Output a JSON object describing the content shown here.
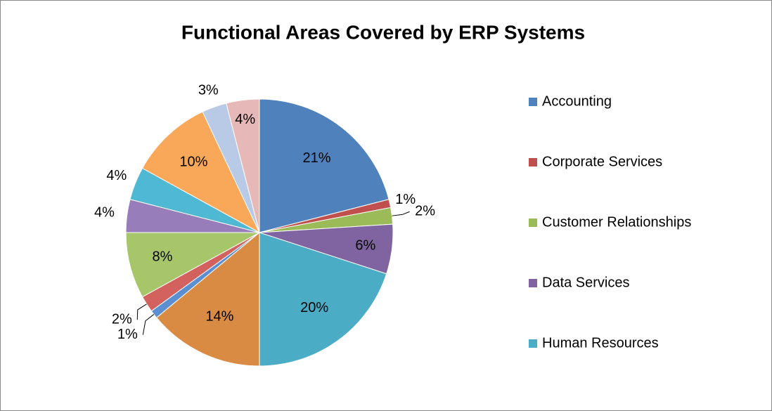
{
  "chart_data": {
    "type": "pie",
    "title": "Functional Areas Covered by ERP Systems",
    "categories": [
      "Accounting",
      "Corporate Services",
      "Customer Relationships",
      "Data Services",
      "Human Resources",
      null,
      null,
      null,
      null,
      null,
      null,
      null,
      null,
      null
    ],
    "values": [
      21,
      1,
      2,
      6,
      20,
      14,
      1,
      2,
      8,
      4,
      4,
      10,
      3,
      4
    ],
    "value_labels": [
      "21%",
      "1%",
      "2%",
      "6%",
      "20%",
      "14%",
      "1%",
      "2%",
      "8%",
      "4%",
      "4%",
      "10%",
      "3%",
      "4%"
    ],
    "colors": [
      "#4f81bd",
      "#c0504d",
      "#9bbb59",
      "#8064a2",
      "#4bacc6",
      "#d98b43",
      "#5b8fd2",
      "#d3625e",
      "#a7c66a",
      "#977dba",
      "#4fb8d2",
      "#f9a85a",
      "#b9cae6",
      "#e6b9b8"
    ],
    "legend": "right"
  }
}
